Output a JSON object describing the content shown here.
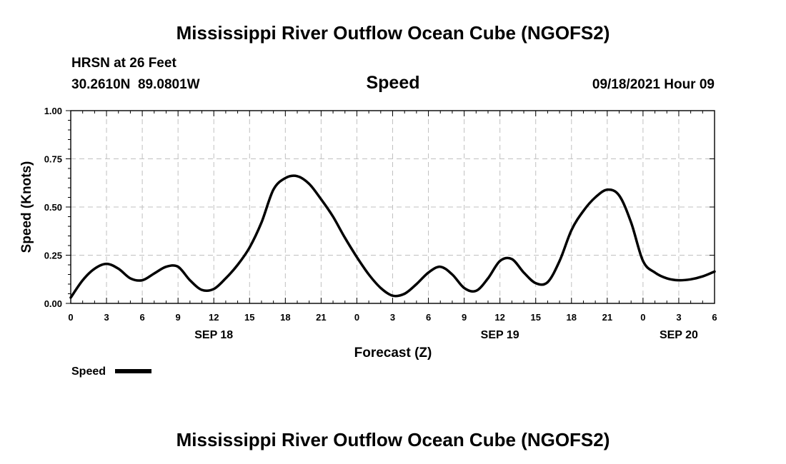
{
  "page": {
    "title_top": "Mississippi River Outflow Ocean Cube (NGOFS2)",
    "title_bottom": "Mississippi River Outflow Ocean Cube (NGOFS2)"
  },
  "header": {
    "station": "HRSN at 26 Feet",
    "coords": "30.2610N  89.0801W",
    "variable": "Speed",
    "datetime": "09/18/2021 Hour 09"
  },
  "chart_data": {
    "type": "line",
    "title": "Speed",
    "xlabel": "Forecast (Z)",
    "ylabel": "Speed (Knots)",
    "xlim": [
      0,
      54
    ],
    "ylim": [
      0,
      1.0
    ],
    "grid": true,
    "x_tick_labels": [
      "0",
      "3",
      "6",
      "9",
      "12",
      "15",
      "18",
      "21",
      "0",
      "3",
      "6",
      "9",
      "12",
      "15",
      "18",
      "21",
      "0",
      "3",
      "6"
    ],
    "y_tick_values": [
      0,
      0.25,
      0.5,
      0.75,
      1.0
    ],
    "y_tick_labels": [
      "0.00",
      "0.25",
      "0.50",
      "0.75",
      "1.00"
    ],
    "date_labels": [
      {
        "hour": 12,
        "label": "SEP 18"
      },
      {
        "hour": 36,
        "label": "SEP 19"
      },
      {
        "hour": 51,
        "label": "SEP 20"
      }
    ],
    "legend": {
      "label": "Speed",
      "placement": "bottom-left"
    },
    "series": [
      {
        "name": "Speed",
        "color": "#000000",
        "x": [
          0,
          1,
          2,
          3,
          4,
          5,
          6,
          7,
          8,
          9,
          10,
          11,
          12,
          13,
          14,
          15,
          16,
          17,
          18,
          19,
          20,
          21,
          22,
          23,
          24,
          25,
          26,
          27,
          28,
          29,
          30,
          31,
          32,
          33,
          34,
          35,
          36,
          37,
          38,
          39,
          40,
          41,
          42,
          43,
          44,
          45,
          46,
          47,
          48,
          49,
          50,
          51,
          52,
          53,
          54
        ],
        "values": [
          0.03,
          0.12,
          0.18,
          0.205,
          0.18,
          0.13,
          0.12,
          0.155,
          0.19,
          0.19,
          0.12,
          0.07,
          0.075,
          0.13,
          0.2,
          0.29,
          0.42,
          0.59,
          0.65,
          0.66,
          0.62,
          0.54,
          0.45,
          0.34,
          0.24,
          0.15,
          0.08,
          0.04,
          0.05,
          0.1,
          0.16,
          0.19,
          0.15,
          0.08,
          0.065,
          0.13,
          0.22,
          0.23,
          0.16,
          0.105,
          0.11,
          0.22,
          0.38,
          0.48,
          0.55,
          0.59,
          0.56,
          0.42,
          0.22,
          0.16,
          0.13,
          0.12,
          0.125,
          0.14,
          0.165
        ]
      }
    ]
  }
}
